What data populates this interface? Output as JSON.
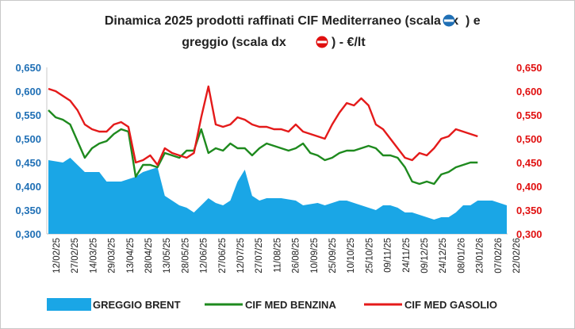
{
  "chart_data": {
    "type": "line",
    "title_line1": "Dinamica 2025 prodotti raffinati CIF Mediterraneo (scala sx",
    "title_line1_end": ") e",
    "title_line2": "greggio (scala dx",
    "title_line2_end": ") - €/lt",
    "ylim_left": [
      0.3,
      0.65
    ],
    "ylim_right": [
      0.3,
      0.65
    ],
    "yticks_left": [
      "0,650",
      "0,600",
      "0,550",
      "0,500",
      "0,450",
      "0,400",
      "0,350",
      "0,300"
    ],
    "yticks_right": [
      "0,650",
      "0,600",
      "0,550",
      "0,500",
      "0,450",
      "0,400",
      "0,350",
      "0,300"
    ],
    "x_tick_labels": [
      "12/02/25",
      "27/02/25",
      "14/03/25",
      "29/03/25",
      "13/04/25",
      "28/04/25",
      "13/05/25",
      "28/05/25",
      "12/06/25",
      "27/06/25",
      "12/07/25",
      "27/07/25",
      "11/08/25",
      "26/08/25",
      "10/09/25",
      "25/09/25",
      "10/10/25",
      "25/10/25",
      "09/11/25",
      "24/11/25",
      "09/12/25",
      "24/12/25",
      "08/01/26",
      "23/01/26",
      "07/02/26",
      "22/02/26"
    ],
    "series": [
      {
        "name": "GREGGIO BRENT",
        "axis": "right",
        "style": "area",
        "color": "#1aa6e6",
        "points": [
          [
            0,
            0.455
          ],
          [
            2,
            0.45
          ],
          [
            3,
            0.46
          ],
          [
            4,
            0.445
          ],
          [
            5,
            0.43
          ],
          [
            7,
            0.43
          ],
          [
            8,
            0.41
          ],
          [
            10,
            0.41
          ],
          [
            12,
            0.42
          ],
          [
            13,
            0.43
          ],
          [
            15,
            0.44
          ],
          [
            16,
            0.38
          ],
          [
            17,
            0.37
          ],
          [
            18,
            0.36
          ],
          [
            19,
            0.355
          ],
          [
            20,
            0.345
          ],
          [
            21,
            0.36
          ],
          [
            22,
            0.375
          ],
          [
            23,
            0.365
          ],
          [
            24,
            0.36
          ],
          [
            25,
            0.37
          ],
          [
            26,
            0.41
          ],
          [
            27,
            0.435
          ],
          [
            28,
            0.38
          ],
          [
            29,
            0.37
          ],
          [
            30,
            0.375
          ],
          [
            32,
            0.375
          ],
          [
            34,
            0.37
          ],
          [
            35,
            0.36
          ],
          [
            37,
            0.365
          ],
          [
            38,
            0.36
          ],
          [
            40,
            0.37
          ],
          [
            41,
            0.37
          ],
          [
            42,
            0.365
          ],
          [
            43,
            0.36
          ],
          [
            44,
            0.355
          ],
          [
            45,
            0.35
          ],
          [
            46,
            0.36
          ],
          [
            47,
            0.36
          ],
          [
            48,
            0.355
          ],
          [
            49,
            0.345
          ],
          [
            50,
            0.345
          ],
          [
            51,
            0.34
          ],
          [
            52,
            0.335
          ],
          [
            53,
            0.33
          ],
          [
            54,
            0.335
          ],
          [
            55,
            0.335
          ],
          [
            56,
            0.345
          ],
          [
            57,
            0.36
          ],
          [
            58,
            0.36
          ],
          [
            59,
            0.37
          ],
          [
            60,
            0.37
          ],
          [
            61,
            0.37
          ],
          [
            62,
            0.365
          ],
          [
            63,
            0.36
          ]
        ]
      },
      {
        "name": "CIF MED BENZINA",
        "axis": "left",
        "style": "line",
        "color": "#1e8a1e",
        "points": [
          [
            0,
            0.56
          ],
          [
            1,
            0.545
          ],
          [
            2,
            0.54
          ],
          [
            3,
            0.53
          ],
          [
            4,
            0.495
          ],
          [
            5,
            0.46
          ],
          [
            6,
            0.48
          ],
          [
            7,
            0.49
          ],
          [
            8,
            0.495
          ],
          [
            9,
            0.51
          ],
          [
            10,
            0.52
          ],
          [
            11,
            0.515
          ],
          [
            12,
            0.42
          ],
          [
            13,
            0.445
          ],
          [
            14,
            0.445
          ],
          [
            15,
            0.44
          ],
          [
            16,
            0.47
          ],
          [
            17,
            0.465
          ],
          [
            18,
            0.46
          ],
          [
            19,
            0.475
          ],
          [
            20,
            0.475
          ],
          [
            21,
            0.52
          ],
          [
            22,
            0.47
          ],
          [
            23,
            0.48
          ],
          [
            24,
            0.475
          ],
          [
            25,
            0.49
          ],
          [
            26,
            0.48
          ],
          [
            27,
            0.48
          ],
          [
            28,
            0.465
          ],
          [
            29,
            0.48
          ],
          [
            30,
            0.49
          ],
          [
            31,
            0.485
          ],
          [
            32,
            0.48
          ],
          [
            33,
            0.475
          ],
          [
            34,
            0.48
          ],
          [
            35,
            0.49
          ],
          [
            36,
            0.47
          ],
          [
            37,
            0.465
          ],
          [
            38,
            0.455
          ],
          [
            39,
            0.46
          ],
          [
            40,
            0.47
          ],
          [
            41,
            0.475
          ],
          [
            42,
            0.475
          ],
          [
            43,
            0.48
          ],
          [
            44,
            0.485
          ],
          [
            45,
            0.48
          ],
          [
            46,
            0.465
          ],
          [
            47,
            0.465
          ],
          [
            48,
            0.46
          ],
          [
            49,
            0.44
          ],
          [
            50,
            0.41
          ],
          [
            51,
            0.405
          ],
          [
            52,
            0.41
          ],
          [
            53,
            0.405
          ],
          [
            54,
            0.425
          ],
          [
            55,
            0.43
          ],
          [
            56,
            0.44
          ],
          [
            57,
            0.445
          ],
          [
            58,
            0.45
          ],
          [
            59,
            0.45
          ]
        ]
      },
      {
        "name": "CIF MED GASOLIO",
        "axis": "left",
        "style": "line",
        "color": "#e41a1a",
        "points": [
          [
            0,
            0.605
          ],
          [
            1,
            0.6
          ],
          [
            2,
            0.59
          ],
          [
            3,
            0.58
          ],
          [
            4,
            0.56
          ],
          [
            5,
            0.53
          ],
          [
            6,
            0.52
          ],
          [
            7,
            0.515
          ],
          [
            8,
            0.515
          ],
          [
            9,
            0.53
          ],
          [
            10,
            0.535
          ],
          [
            11,
            0.525
          ],
          [
            12,
            0.45
          ],
          [
            13,
            0.455
          ],
          [
            14,
            0.465
          ],
          [
            15,
            0.445
          ],
          [
            16,
            0.48
          ],
          [
            17,
            0.47
          ],
          [
            18,
            0.465
          ],
          [
            19,
            0.46
          ],
          [
            20,
            0.47
          ],
          [
            21,
            0.545
          ],
          [
            22,
            0.61
          ],
          [
            23,
            0.53
          ],
          [
            24,
            0.525
          ],
          [
            25,
            0.53
          ],
          [
            26,
            0.545
          ],
          [
            27,
            0.54
          ],
          [
            28,
            0.53
          ],
          [
            29,
            0.525
          ],
          [
            30,
            0.525
          ],
          [
            31,
            0.52
          ],
          [
            32,
            0.52
          ],
          [
            33,
            0.515
          ],
          [
            34,
            0.53
          ],
          [
            35,
            0.515
          ],
          [
            36,
            0.51
          ],
          [
            37,
            0.505
          ],
          [
            38,
            0.5
          ],
          [
            39,
            0.53
          ],
          [
            40,
            0.555
          ],
          [
            41,
            0.575
          ],
          [
            42,
            0.57
          ],
          [
            43,
            0.585
          ],
          [
            44,
            0.57
          ],
          [
            45,
            0.53
          ],
          [
            46,
            0.52
          ],
          [
            47,
            0.5
          ],
          [
            48,
            0.48
          ],
          [
            49,
            0.46
          ],
          [
            50,
            0.455
          ],
          [
            51,
            0.47
          ],
          [
            52,
            0.465
          ],
          [
            53,
            0.48
          ],
          [
            54,
            0.5
          ],
          [
            55,
            0.505
          ],
          [
            56,
            0.52
          ],
          [
            57,
            0.515
          ],
          [
            58,
            0.51
          ],
          [
            59,
            0.505
          ]
        ]
      }
    ],
    "legend_position": "bottom"
  }
}
